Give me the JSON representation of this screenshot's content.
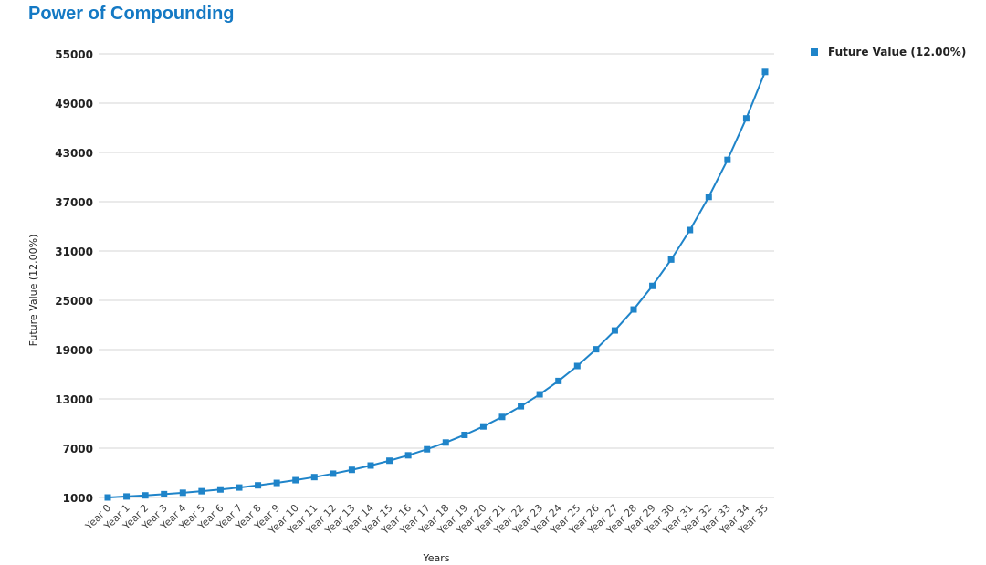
{
  "chart_data": {
    "type": "line",
    "title": "Power of Compounding",
    "xlabel": "Years",
    "ylabel": "Future Value (12.00%)",
    "ylim": [
      1000,
      55000
    ],
    "yticks": [
      1000,
      7000,
      13000,
      19000,
      25000,
      31000,
      37000,
      43000,
      49000,
      55000
    ],
    "grid": true,
    "legend": "top-right",
    "color": "#1f84c9",
    "categories": [
      "Year 0",
      "Year 1",
      "Year 2",
      "Year 3",
      "Year 4",
      "Year 5",
      "Year 6",
      "Year 7",
      "Year 8",
      "Year 9",
      "Year 10",
      "Year 11",
      "Year 12",
      "Year 13",
      "Year 14",
      "Year 15",
      "Year 16",
      "Year 17",
      "Year 18",
      "Year 19",
      "Year 20",
      "Year 21",
      "Year 22",
      "Year 23",
      "Year 24",
      "Year 25",
      "Year 26",
      "Year 27",
      "Year 28",
      "Year 29",
      "Year 30",
      "Year 31",
      "Year 32",
      "Year 33",
      "Year 34",
      "Year 35"
    ],
    "series": [
      {
        "name": "Future Value (12.00%)",
        "values": [
          1000,
          1120,
          1254,
          1405,
          1574,
          1762,
          1974,
          2211,
          2476,
          2773,
          3106,
          3479,
          3896,
          4363,
          4887,
          5474,
          6130,
          6866,
          7690,
          8613,
          9646,
          10804,
          12100,
          13552,
          15179,
          17000,
          19040,
          21325,
          23884,
          26750,
          29960,
          33555,
          37582,
          42092,
          47143,
          52800
        ]
      }
    ]
  }
}
